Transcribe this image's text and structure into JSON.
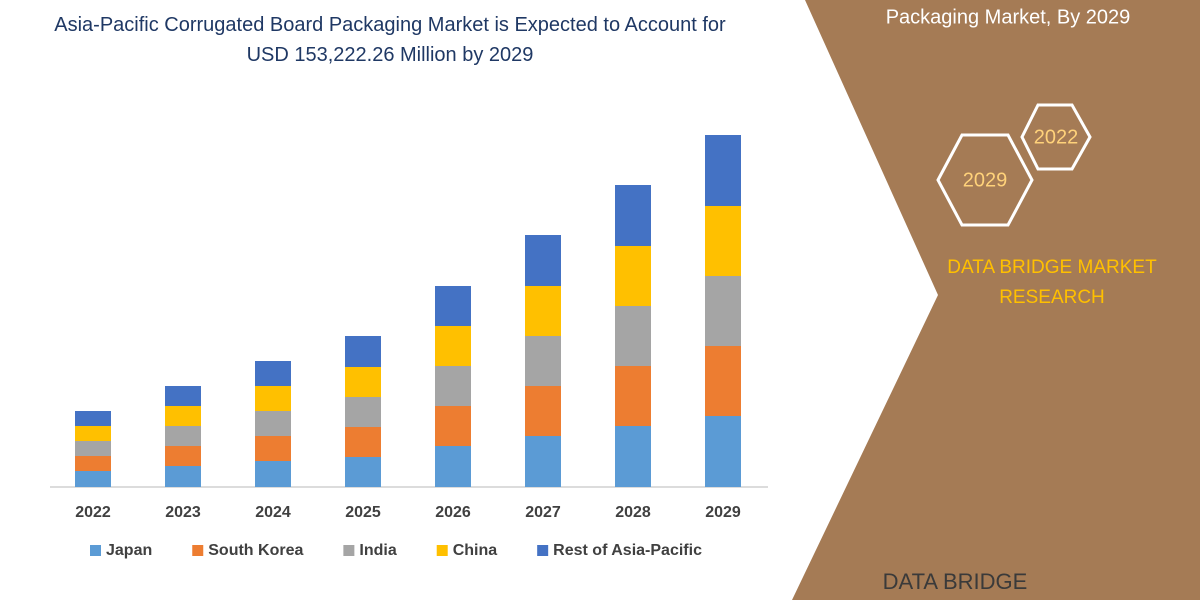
{
  "chart_data": {
    "type": "stacked-bar",
    "title": "Asia-Pacific Corrugated Board Packaging Market is Expected to Account for USD 153,222.26 Million by 2029",
    "categories": [
      "2022",
      "2023",
      "2024",
      "2025",
      "2026",
      "2027",
      "2028",
      "2029"
    ],
    "series": [
      {
        "name": "Japan",
        "color": "#5b9bd5",
        "values": [
          16,
          21,
          26,
          30,
          41,
          51,
          61,
          71
        ]
      },
      {
        "name": "South Korea",
        "color": "#ed7d31",
        "values": [
          15,
          20,
          25,
          30,
          40,
          50,
          60,
          70
        ]
      },
      {
        "name": "India",
        "color": "#a5a5a5",
        "values": [
          15,
          20,
          25,
          30,
          40,
          50,
          60,
          70
        ]
      },
      {
        "name": "China",
        "color": "#ffc000",
        "values": [
          15,
          20,
          25,
          30,
          40,
          50,
          60,
          70
        ]
      },
      {
        "name": "Rest of Asia-Pacific",
        "color": "#4472c4",
        "values": [
          15,
          20,
          25,
          31,
          40,
          51,
          61,
          71
        ]
      }
    ],
    "legend": "bottom"
  },
  "panel": {
    "heading": "Packaging Market, By 2029",
    "year_start": "2022",
    "year_end": "2029",
    "brand": "DATA BRIDGE MARKET RESEARCH",
    "logo": "DATA BRIDGE"
  }
}
